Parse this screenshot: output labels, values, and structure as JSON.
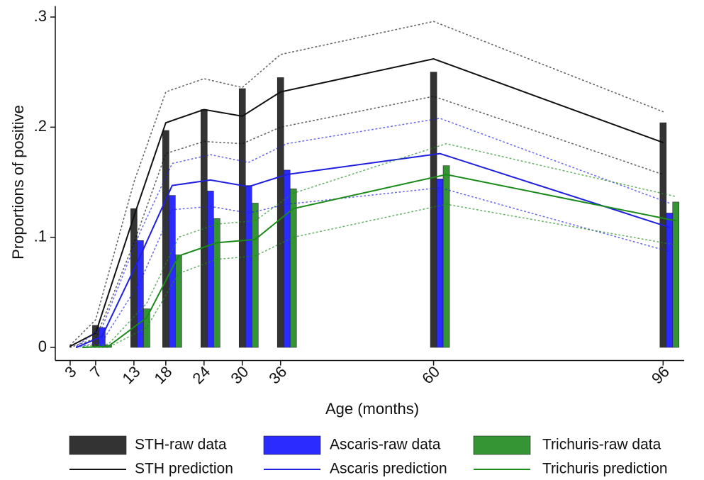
{
  "chart_data": {
    "type": "bar_line",
    "x_label": "Age (months)",
    "y_label": "Proportions of positive",
    "x": [
      3,
      7,
      13,
      18,
      24,
      30,
      36,
      60,
      96
    ],
    "xlim": [
      0.67,
      99.3
    ],
    "xticks": [
      3,
      7,
      13,
      18,
      24,
      30,
      36,
      60,
      96
    ],
    "ylim": [
      -0.01,
      0.31
    ],
    "yticks": [
      0,
      {
        "value": 0.1,
        "label": ".1"
      },
      {
        "value": 0.2,
        "label": ".2"
      },
      {
        "value": 0.3,
        "label": ".3"
      }
    ],
    "series": [
      {
        "name": "STH-raw data",
        "type": "bar",
        "color": "#333333",
        "values": [
          null,
          0.02,
          0.126,
          0.197,
          0.216,
          0.235,
          0.245,
          0.25,
          0.204
        ]
      },
      {
        "name": "Ascaris-raw data",
        "type": "bar",
        "color": "#2b2bff",
        "values": [
          null,
          0.018,
          0.097,
          0.138,
          0.142,
          0.147,
          0.161,
          0.153,
          0.122
        ]
      },
      {
        "name": "Trichuris-raw data",
        "type": "bar",
        "color": "#359535",
        "values": [
          null,
          0.002,
          0.035,
          0.084,
          0.117,
          0.131,
          0.144,
          0.165,
          0.132
        ]
      },
      {
        "name": "STH prediction",
        "type": "line",
        "color": "#111111",
        "values": [
          0.001,
          0.013,
          0.119,
          0.204,
          0.216,
          0.21,
          0.232,
          0.262,
          0.186
        ],
        "ci_upper": [
          0.002,
          0.025,
          0.15,
          0.232,
          0.244,
          0.236,
          0.266,
          0.296,
          0.214
        ],
        "ci_lower": [
          0,
          0.008,
          0.095,
          0.176,
          0.187,
          0.185,
          0.2,
          0.228,
          0.157
        ]
      },
      {
        "name": "Ascaris prediction",
        "type": "line",
        "color": "#1f1fe0",
        "values": [
          0,
          0.01,
          0.083,
          0.147,
          0.152,
          0.146,
          0.157,
          0.176,
          0.109
        ],
        "ci_upper": [
          0.001,
          0.018,
          0.105,
          0.167,
          0.175,
          0.168,
          0.185,
          0.208,
          0.131
        ],
        "ci_lower": [
          0,
          0.005,
          0.06,
          0.125,
          0.128,
          0.122,
          0.13,
          0.145,
          0.087
        ]
      },
      {
        "name": "Trichuris prediction",
        "type": "line",
        "color": "#1a8a1a",
        "values": [
          0,
          0.001,
          0.027,
          0.083,
          0.095,
          0.098,
          0.126,
          0.157,
          0.115
        ],
        "ci_upper": [
          0.001,
          0.003,
          0.04,
          0.1,
          0.112,
          0.115,
          0.14,
          0.185,
          0.137
        ],
        "ci_lower": [
          0,
          0,
          0.018,
          0.067,
          0.08,
          0.083,
          0.1,
          0.13,
          0.093
        ]
      }
    ]
  }
}
